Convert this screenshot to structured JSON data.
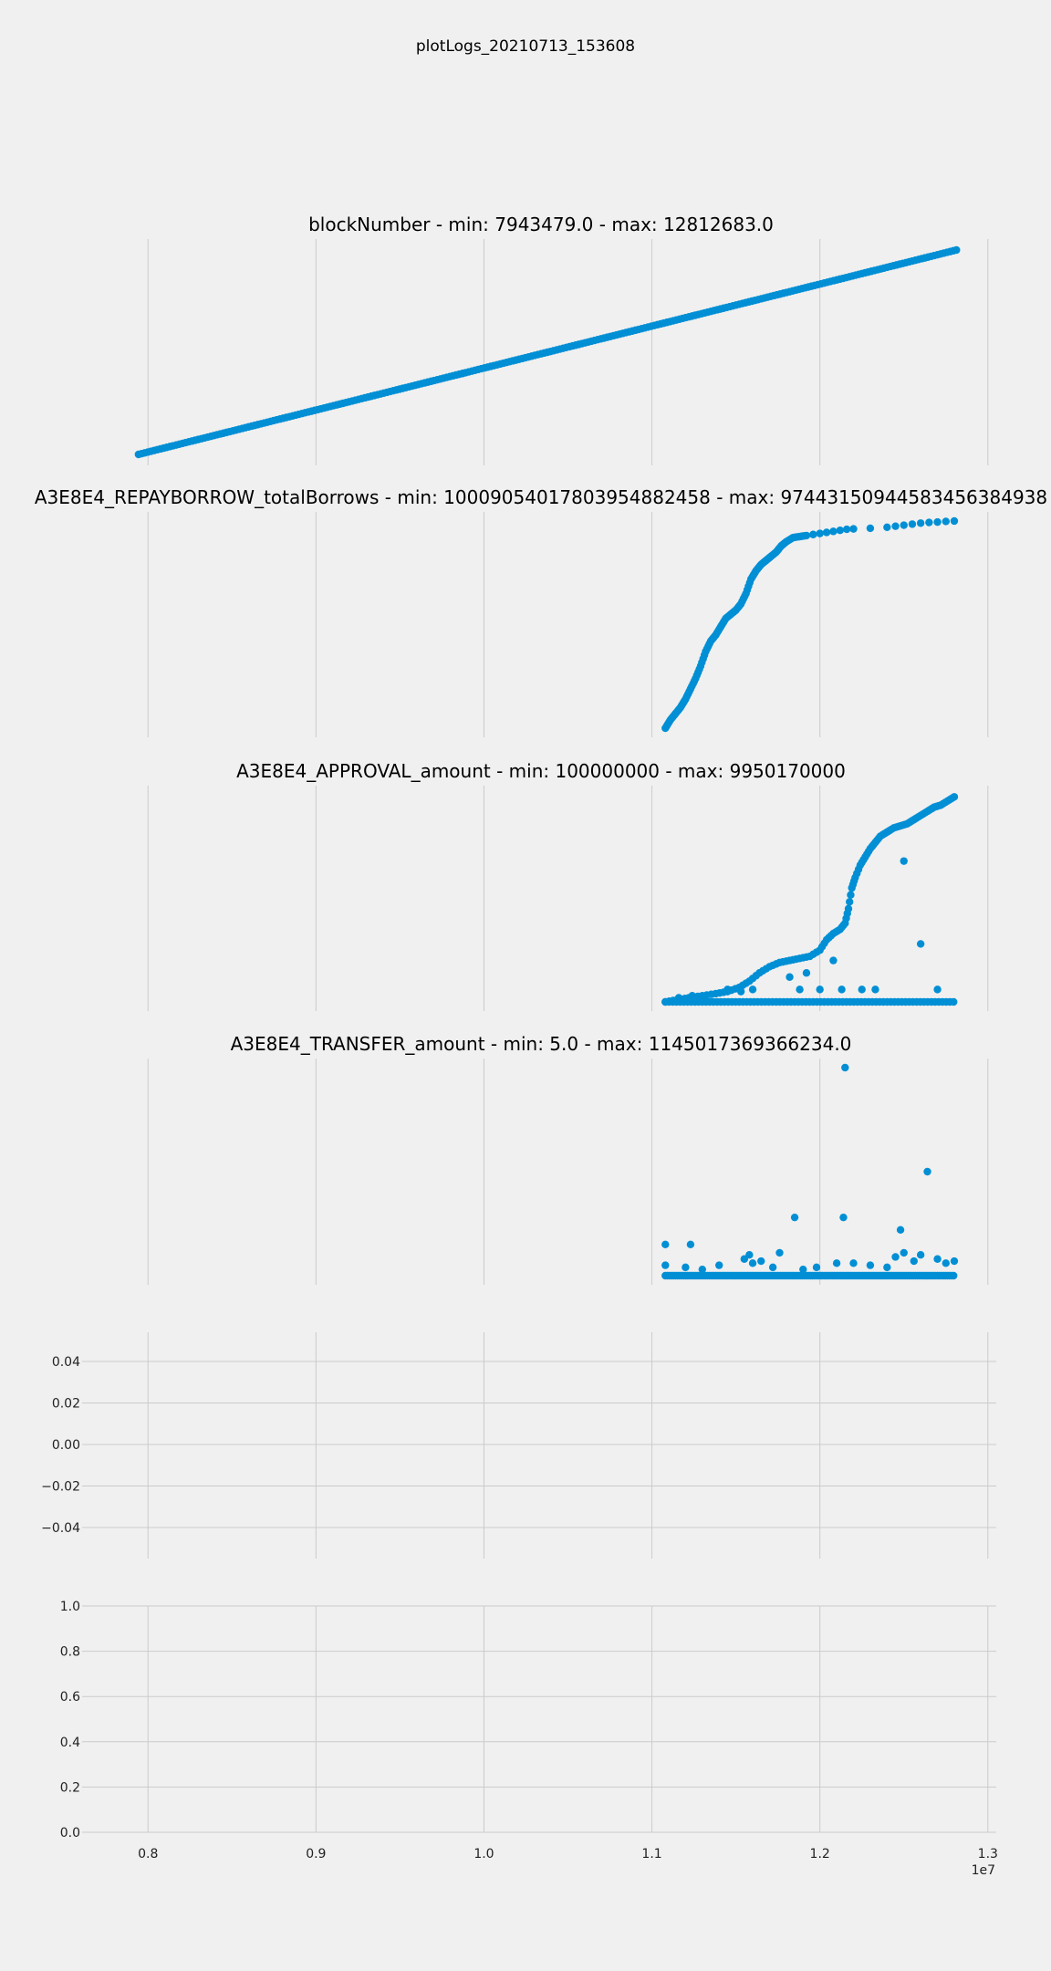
{
  "figure": {
    "suptitle": "plotLogs_20210713_153608",
    "x_offset_label": "1e7",
    "x_tick_labels": [
      "0.8",
      "0.9",
      "1.0",
      "1.1",
      "1.2",
      "1.3"
    ],
    "series_color": "#008fd5",
    "background": "#f0f0f0"
  },
  "chart_data": [
    {
      "type": "scatter",
      "title": "blockNumber - min: 7943479.0 - max: 12812683.0",
      "xlim": [
        7700000,
        13050000
      ],
      "ylim": [
        7700000,
        13050000
      ],
      "x_ticks": [
        8000000,
        9000000,
        10000000,
        11000000,
        12000000,
        13000000
      ],
      "y_visible": false,
      "x_tick_labels_visible": false,
      "series": [
        {
          "x_range": [
            7943479,
            12812683
          ],
          "y": "x",
          "shape": "linear"
        }
      ]
    },
    {
      "type": "scatter",
      "title": "A3E8E4_REPAYBORROW_totalBorrows - min: 1000905401780395488245­8 - max: 97443150944583456384938",
      "xlim": [
        7700000,
        13050000
      ],
      "x_ticks": [
        8000000,
        9000000,
        10000000,
        11000000,
        12000000,
        13000000
      ],
      "y_visible": false,
      "x_tick_labels_visible": false,
      "series": [
        {
          "points": [
            [
              11080000,
              0.0
            ],
            [
              11110000,
              0.04
            ],
            [
              11140000,
              0.07
            ],
            [
              11170000,
              0.1
            ],
            [
              11200000,
              0.14
            ],
            [
              11230000,
              0.19
            ],
            [
              11260000,
              0.24
            ],
            [
              11290000,
              0.3
            ],
            [
              11320000,
              0.37
            ],
            [
              11350000,
              0.42
            ],
            [
              11380000,
              0.45
            ],
            [
              11410000,
              0.49
            ],
            [
              11440000,
              0.53
            ],
            [
              11470000,
              0.55
            ],
            [
              11500000,
              0.57
            ],
            [
              11530000,
              0.6
            ],
            [
              11560000,
              0.65
            ],
            [
              11590000,
              0.72
            ],
            [
              11620000,
              0.76
            ],
            [
              11650000,
              0.79
            ],
            [
              11680000,
              0.81
            ],
            [
              11710000,
              0.83
            ],
            [
              11740000,
              0.85
            ],
            [
              11770000,
              0.88
            ],
            [
              11800000,
              0.9
            ],
            [
              11840000,
              0.92
            ],
            [
              11880000,
              0.925
            ],
            [
              11920000,
              0.93
            ],
            [
              11960000,
              0.935
            ],
            [
              12000000,
              0.94
            ],
            [
              12040000,
              0.945
            ],
            [
              12080000,
              0.95
            ],
            [
              12120000,
              0.955
            ],
            [
              12160000,
              0.96
            ],
            [
              12200000,
              0.962
            ],
            [
              12300000,
              0.965
            ],
            [
              12400000,
              0.97
            ],
            [
              12450000,
              0.975
            ],
            [
              12500000,
              0.98
            ],
            [
              12550000,
              0.985
            ],
            [
              12600000,
              0.99
            ],
            [
              12650000,
              0.993
            ],
            [
              12700000,
              0.995
            ],
            [
              12750000,
              0.998
            ],
            [
              12800000,
              1.0
            ]
          ]
        }
      ]
    },
    {
      "type": "scatter",
      "title": "A3E8E4_APPROVAL_amount - min: 100000000 - max: 9950170000",
      "xlim": [
        7700000,
        13050000
      ],
      "x_ticks": [
        8000000,
        9000000,
        10000000,
        11000000,
        12000000,
        13000000
      ],
      "y_visible": false,
      "x_tick_labels_visible": false,
      "series": [
        {
          "main_curve": [
            [
              11080000,
              0.0
            ],
            [
              11150000,
              0.01
            ],
            [
              11220000,
              0.02
            ],
            [
              11300000,
              0.03
            ],
            [
              11380000,
              0.04
            ],
            [
              11450000,
              0.05
            ],
            [
              11520000,
              0.07
            ],
            [
              11580000,
              0.1
            ],
            [
              11640000,
              0.14
            ],
            [
              11700000,
              0.17
            ],
            [
              11760000,
              0.19
            ],
            [
              11820000,
              0.2
            ],
            [
              11880000,
              0.21
            ],
            [
              11940000,
              0.22
            ],
            [
              12000000,
              0.25
            ],
            [
              12040000,
              0.3
            ],
            [
              12080000,
              0.33
            ],
            [
              12120000,
              0.35
            ],
            [
              12150000,
              0.38
            ],
            [
              12170000,
              0.45
            ],
            [
              12190000,
              0.55
            ],
            [
              12210000,
              0.6
            ],
            [
              12240000,
              0.66
            ],
            [
              12270000,
              0.7
            ],
            [
              12300000,
              0.74
            ],
            [
              12330000,
              0.77
            ],
            [
              12360000,
              0.8
            ],
            [
              12400000,
              0.82
            ],
            [
              12440000,
              0.84
            ],
            [
              12480000,
              0.85
            ],
            [
              12520000,
              0.86
            ],
            [
              12560000,
              0.88
            ],
            [
              12600000,
              0.9
            ],
            [
              12640000,
              0.92
            ],
            [
              12680000,
              0.94
            ],
            [
              12720000,
              0.95
            ],
            [
              12760000,
              0.97
            ],
            [
              12800000,
              0.99
            ]
          ],
          "baseline": 0.0,
          "outliers": [
            [
              11160000,
              0.02
            ],
            [
              11240000,
              0.03
            ],
            [
              11450000,
              0.06
            ],
            [
              11530000,
              0.05
            ],
            [
              11600000,
              0.06
            ],
            [
              11820000,
              0.12
            ],
            [
              11880000,
              0.06
            ],
            [
              11920000,
              0.14
            ],
            [
              12000000,
              0.06
            ],
            [
              12080000,
              0.2
            ],
            [
              12130000,
              0.06
            ],
            [
              12250000,
              0.06
            ],
            [
              12330000,
              0.06
            ],
            [
              12500000,
              0.68
            ],
            [
              12600000,
              0.28
            ],
            [
              12700000,
              0.06
            ]
          ]
        }
      ]
    },
    {
      "type": "scatter",
      "title": "A3E8E4_TRANSFER_amount - min: 5.0 - max: 1145017369366234.0",
      "xlim": [
        7700000,
        13050000
      ],
      "x_ticks": [
        8000000,
        9000000,
        10000000,
        11000000,
        12000000,
        13000000
      ],
      "y_visible": false,
      "x_tick_labels_visible": false,
      "series": [
        {
          "baseline": 0.0,
          "outliers": [
            [
              11080000,
              0.15
            ],
            [
              11080000,
              0.05
            ],
            [
              11230000,
              0.15
            ],
            [
              11200000,
              0.04
            ],
            [
              11300000,
              0.03
            ],
            [
              11400000,
              0.05
            ],
            [
              11550000,
              0.08
            ],
            [
              11580000,
              0.1
            ],
            [
              11600000,
              0.06
            ],
            [
              11650000,
              0.07
            ],
            [
              11720000,
              0.04
            ],
            [
              11760000,
              0.11
            ],
            [
              11850000,
              0.28
            ],
            [
              11900000,
              0.03
            ],
            [
              11980000,
              0.04
            ],
            [
              12100000,
              0.06
            ],
            [
              12140000,
              0.28
            ],
            [
              12150000,
              1.0
            ],
            [
              12200000,
              0.06
            ],
            [
              12300000,
              0.05
            ],
            [
              12400000,
              0.04
            ],
            [
              12450000,
              0.09
            ],
            [
              12480000,
              0.22
            ],
            [
              12500000,
              0.11
            ],
            [
              12560000,
              0.07
            ],
            [
              12600000,
              0.1
            ],
            [
              12640000,
              0.5
            ],
            [
              12700000,
              0.08
            ],
            [
              12750000,
              0.06
            ],
            [
              12800000,
              0.07
            ]
          ]
        }
      ]
    },
    {
      "type": "scatter",
      "title": "",
      "xlim": [
        7700000,
        13050000
      ],
      "ylim": [
        -0.055,
        0.055
      ],
      "x_ticks": [
        8000000,
        9000000,
        10000000,
        11000000,
        12000000,
        13000000
      ],
      "y_ticks": [
        0.04,
        0.02,
        0.0,
        -0.02,
        -0.04
      ],
      "y_tick_labels": [
        "0.04",
        "0.02",
        "0.00",
        "−0.02",
        "−0.04"
      ],
      "x_tick_labels_visible": false,
      "series": []
    },
    {
      "type": "scatter",
      "title": "",
      "xlim": [
        7700000,
        13050000
      ],
      "ylim": [
        0.0,
        1.0
      ],
      "x_ticks": [
        8000000,
        9000000,
        10000000,
        11000000,
        12000000,
        13000000
      ],
      "y_ticks": [
        1.0,
        0.8,
        0.6,
        0.4,
        0.2,
        0.0
      ],
      "y_tick_labels": [
        "1.0",
        "0.8",
        "0.6",
        "0.4",
        "0.2",
        "0.0"
      ],
      "x_tick_labels_visible": true,
      "series": []
    }
  ]
}
